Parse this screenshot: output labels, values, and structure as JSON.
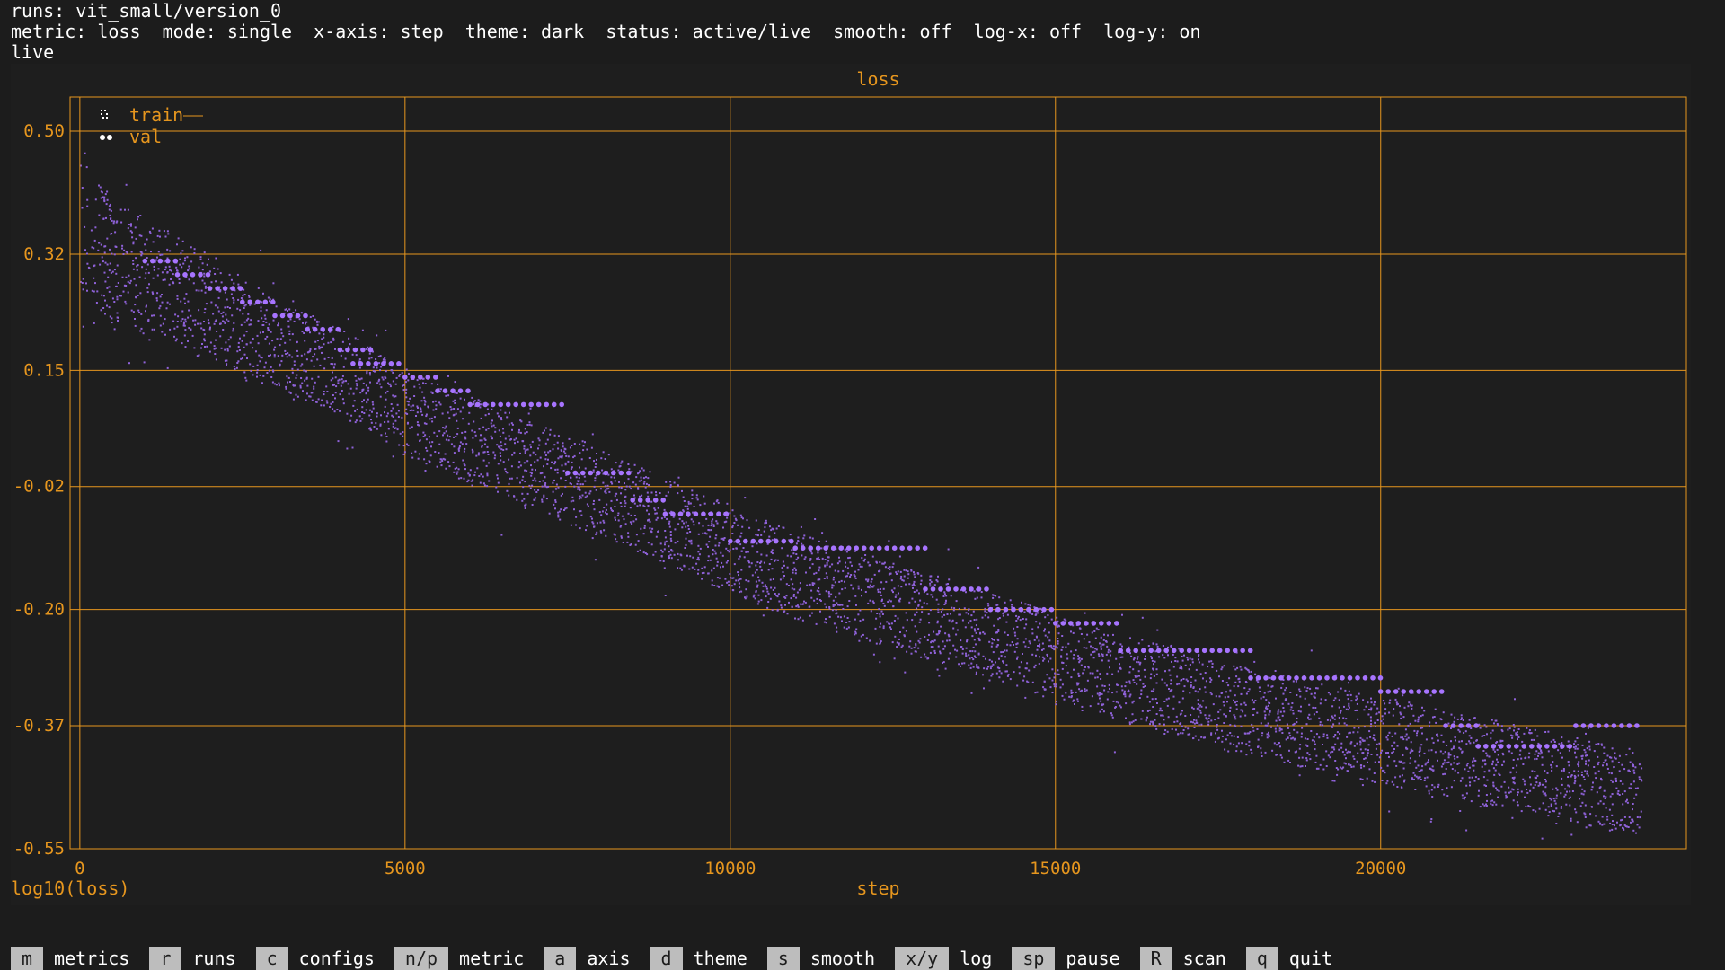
{
  "header": {
    "runs_line": "runs: vit_small/version_0",
    "status_line": "metric: loss  mode: single  x-axis: step  theme: dark  status: active/live  smooth: off  log-x: off  log-y: on",
    "live_label": "live"
  },
  "keybar": [
    {
      "key": "m",
      "label": "metrics"
    },
    {
      "key": "r",
      "label": "runs"
    },
    {
      "key": "c",
      "label": "configs"
    },
    {
      "key": "n/p",
      "label": "metric"
    },
    {
      "key": "a",
      "label": "axis"
    },
    {
      "key": "d",
      "label": "theme"
    },
    {
      "key": "s",
      "label": "smooth"
    },
    {
      "key": "x/y",
      "label": "log"
    },
    {
      "key": "sp",
      "label": "pause"
    },
    {
      "key": "R",
      "label": "scan"
    },
    {
      "key": "q",
      "label": "quit"
    }
  ],
  "colors": {
    "background": "#1c1c1c",
    "axis": "#e6961e",
    "train": "#8f62d9",
    "val": "#a774ff",
    "text": "#ffffff"
  },
  "chart_data": {
    "type": "scatter",
    "title": "loss",
    "xlabel": "step",
    "ylabel": "log10(loss)",
    "xlim": [
      -150,
      24700
    ],
    "ylim": [
      -0.55,
      0.55
    ],
    "x_ticks": [
      0,
      5000,
      10000,
      15000,
      20000
    ],
    "y_ticks": [
      0.5,
      0.32,
      0.15,
      -0.02,
      -0.2,
      -0.37,
      -0.55
    ],
    "y_tick_labels": [
      "0.50",
      "0.32",
      "0.15",
      "-0.02",
      "-0.20",
      "-0.37",
      "-0.55"
    ],
    "grid": true,
    "legend": "top-left",
    "series": [
      {
        "name": "train",
        "marker": "braille",
        "x": [
          0,
          500,
          1000,
          1500,
          2000,
          2500,
          3000,
          3500,
          4000,
          4500,
          5000,
          5500,
          6000,
          6500,
          7000,
          7500,
          8000,
          8500,
          9000,
          9500,
          10000,
          10500,
          11000,
          11500,
          12000,
          12500,
          13000,
          13500,
          14000,
          14500,
          15000,
          15500,
          16000,
          16500,
          17000,
          17500,
          18000,
          18500,
          19000,
          19500,
          20000,
          20500,
          21000,
          21500,
          22000,
          22500,
          23000,
          23500,
          24000
        ],
        "y": [
          0.37,
          0.31,
          0.29,
          0.27,
          0.24,
          0.21,
          0.19,
          0.17,
          0.15,
          0.12,
          0.09,
          0.07,
          0.05,
          0.03,
          0.01,
          -0.01,
          -0.03,
          -0.05,
          -0.07,
          -0.09,
          -0.11,
          -0.13,
          -0.15,
          -0.16,
          -0.18,
          -0.19,
          -0.21,
          -0.22,
          -0.24,
          -0.25,
          -0.27,
          -0.28,
          -0.3,
          -0.31,
          -0.32,
          -0.34,
          -0.35,
          -0.36,
          -0.37,
          -0.38,
          -0.39,
          -0.4,
          -0.41,
          -0.42,
          -0.43,
          -0.44,
          -0.45,
          -0.46,
          -0.47
        ],
        "spread": [
          0.12,
          0.11,
          0.1,
          0.1,
          0.09,
          0.09,
          0.08,
          0.08,
          0.08,
          0.08,
          0.08,
          0.08,
          0.08,
          0.08,
          0.08,
          0.08,
          0.08,
          0.08,
          0.08,
          0.08,
          0.08,
          0.08,
          0.08,
          0.08,
          0.08,
          0.08,
          0.08,
          0.08,
          0.08,
          0.08,
          0.08,
          0.08,
          0.08,
          0.08,
          0.08,
          0.08,
          0.08,
          0.08,
          0.08,
          0.08,
          0.08,
          0.08,
          0.08,
          0.08,
          0.08,
          0.08,
          0.08,
          0.08,
          0.08
        ]
      },
      {
        "name": "val",
        "marker": "dot",
        "segments": [
          {
            "x0": 1000,
            "x1": 1500,
            "y": 0.31
          },
          {
            "x0": 1500,
            "x1": 2000,
            "y": 0.29
          },
          {
            "x0": 2000,
            "x1": 2500,
            "y": 0.27
          },
          {
            "x0": 2500,
            "x1": 3000,
            "y": 0.25
          },
          {
            "x0": 3000,
            "x1": 3500,
            "y": 0.23
          },
          {
            "x0": 3500,
            "x1": 4000,
            "y": 0.21
          },
          {
            "x0": 4000,
            "x1": 4500,
            "y": 0.18
          },
          {
            "x0": 4200,
            "x1": 5000,
            "y": 0.16
          },
          {
            "x0": 5000,
            "x1": 5500,
            "y": 0.14
          },
          {
            "x0": 5500,
            "x1": 6000,
            "y": 0.12
          },
          {
            "x0": 6000,
            "x1": 7500,
            "y": 0.1
          },
          {
            "x0": 7500,
            "x1": 8500,
            "y": 0.0
          },
          {
            "x0": 8500,
            "x1": 9000,
            "y": -0.04
          },
          {
            "x0": 9000,
            "x1": 10000,
            "y": -0.06
          },
          {
            "x0": 10000,
            "x1": 11000,
            "y": -0.1
          },
          {
            "x0": 11000,
            "x1": 13000,
            "y": -0.11
          },
          {
            "x0": 13000,
            "x1": 14000,
            "y": -0.17
          },
          {
            "x0": 14000,
            "x1": 15000,
            "y": -0.2
          },
          {
            "x0": 15000,
            "x1": 16000,
            "y": -0.22
          },
          {
            "x0": 16000,
            "x1": 18000,
            "y": -0.26
          },
          {
            "x0": 18000,
            "x1": 20000,
            "y": -0.3
          },
          {
            "x0": 20000,
            "x1": 21000,
            "y": -0.32
          },
          {
            "x0": 21000,
            "x1": 21500,
            "y": -0.37
          },
          {
            "x0": 21500,
            "x1": 23000,
            "y": -0.4
          },
          {
            "x0": 23000,
            "x1": 24000,
            "y": -0.37
          }
        ]
      }
    ]
  }
}
